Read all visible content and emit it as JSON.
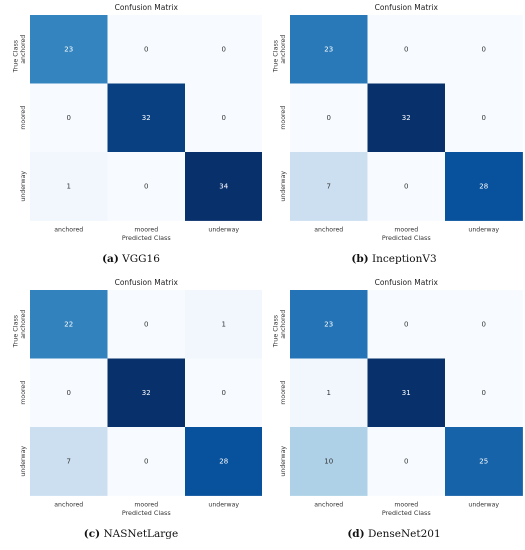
{
  "chart_data": [
    {
      "type": "heatmap",
      "title": "Confusion Matrix",
      "caption_letter": "(a)",
      "caption_name": "VGG16",
      "xlabel": "Predicted Class",
      "ylabel": "True Class",
      "x_categories": [
        "anchored",
        "moored",
        "underway"
      ],
      "y_categories": [
        "anchored",
        "moored",
        "underway"
      ],
      "values": [
        [
          23,
          0,
          0
        ],
        [
          0,
          32,
          0
        ],
        [
          1,
          0,
          34
        ]
      ],
      "vmax": 34
    },
    {
      "type": "heatmap",
      "title": "Confusion Matrix",
      "caption_letter": "(b)",
      "caption_name": "InceptionV3",
      "xlabel": "Predicted Class",
      "ylabel": "True Class",
      "x_categories": [
        "anchored",
        "moored",
        "underway"
      ],
      "y_categories": [
        "anchored",
        "moored",
        "underway"
      ],
      "values": [
        [
          23,
          0,
          0
        ],
        [
          0,
          32,
          0
        ],
        [
          7,
          0,
          28
        ]
      ],
      "vmax": 32
    },
    {
      "type": "heatmap",
      "title": "Confusion Matrix",
      "caption_letter": "(c)",
      "caption_name": "NASNetLarge",
      "xlabel": "Predicted Class",
      "ylabel": "True Class",
      "x_categories": [
        "anchored",
        "moored",
        "underway"
      ],
      "y_categories": [
        "anchored",
        "moored",
        "underway"
      ],
      "values": [
        [
          22,
          0,
          1
        ],
        [
          0,
          32,
          0
        ],
        [
          7,
          0,
          28
        ]
      ],
      "vmax": 32
    },
    {
      "type": "heatmap",
      "title": "Confusion Matrix",
      "caption_letter": "(d)",
      "caption_name": "DenseNet201",
      "xlabel": "Predicted Class",
      "ylabel": "True Class",
      "x_categories": [
        "anchored",
        "moored",
        "underway"
      ],
      "y_categories": [
        "anchored",
        "moored",
        "underway"
      ],
      "values": [
        [
          23,
          0,
          0
        ],
        [
          1,
          31,
          0
        ],
        [
          10,
          0,
          25
        ]
      ],
      "vmax": 31
    }
  ]
}
